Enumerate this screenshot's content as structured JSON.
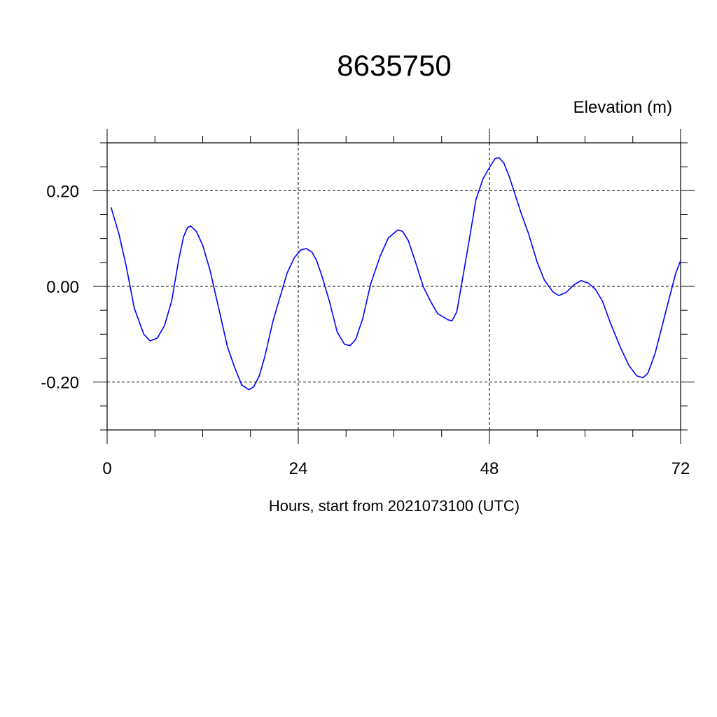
{
  "chart_data": {
    "type": "line",
    "title": "8635750",
    "ylabel": "Elevation (m)",
    "xlabel": "Hours, start from 2021073100 (UTC)",
    "xlim": [
      0,
      72
    ],
    "ylim": [
      -0.3,
      0.3
    ],
    "x_ticks": [
      0,
      24,
      48,
      72
    ],
    "x_tick_labels": [
      "0",
      "24",
      "48",
      "72"
    ],
    "x_minor_step": 6,
    "y_ticks": [
      -0.2,
      0.0,
      0.2
    ],
    "y_tick_labels": [
      "-0.20",
      "0.00",
      "0.20"
    ],
    "y_minor_step": 0.05,
    "grid": "dashed at major ticks",
    "line_color": "#0000ff",
    "series": [
      {
        "x": [
          0.5,
          1.5,
          2.4,
          3.4,
          4.6,
          5.4,
          6.3,
          7.2,
          8.1,
          9.0,
          9.6,
          10.1,
          10.5,
          11.2,
          12.0,
          12.9,
          14.0,
          15.1,
          16.0,
          16.9,
          17.8,
          18.4,
          19.1,
          19.8,
          20.8,
          21.7,
          22.6,
          23.5,
          24.3,
          25.0,
          25.7,
          26.3,
          27.0,
          27.9,
          28.9,
          29.8,
          30.5,
          31.2,
          32.1,
          33.1,
          34.3,
          35.3,
          36.5,
          37.1,
          37.8,
          38.6,
          39.7,
          40.6,
          41.5,
          42.1,
          42.8,
          43.3,
          43.9,
          44.6,
          45.5,
          46.3,
          47.2,
          48.1,
          48.7,
          49.2,
          49.8,
          50.5,
          51.3,
          52.0,
          52.9,
          54.0,
          54.9,
          56.0,
          56.7,
          57.6,
          58.6,
          59.5,
          60.4,
          61.3,
          62.2,
          63.2,
          64.4,
          65.5,
          66.5,
          67.3,
          67.9,
          68.8,
          69.7,
          70.6,
          71.4,
          72.0
        ],
        "y": [
          0.165,
          0.108,
          0.042,
          -0.045,
          -0.1,
          -0.114,
          -0.108,
          -0.082,
          -0.031,
          0.057,
          0.104,
          0.123,
          0.126,
          0.115,
          0.086,
          0.035,
          -0.045,
          -0.126,
          -0.169,
          -0.206,
          -0.216,
          -0.21,
          -0.187,
          -0.147,
          -0.074,
          -0.023,
          0.028,
          0.06,
          0.076,
          0.079,
          0.072,
          0.054,
          0.02,
          -0.031,
          -0.096,
          -0.121,
          -0.124,
          -0.111,
          -0.067,
          0.006,
          0.064,
          0.101,
          0.118,
          0.115,
          0.096,
          0.057,
          -0.001,
          -0.031,
          -0.057,
          -0.063,
          -0.07,
          -0.072,
          -0.053,
          0.013,
          0.101,
          0.181,
          0.225,
          0.251,
          0.267,
          0.269,
          0.258,
          0.229,
          0.188,
          0.152,
          0.111,
          0.05,
          0.013,
          -0.012,
          -0.019,
          -0.013,
          0.003,
          0.012,
          0.007,
          -0.006,
          -0.031,
          -0.077,
          -0.126,
          -0.165,
          -0.187,
          -0.191,
          -0.181,
          -0.14,
          -0.082,
          -0.023,
          0.028,
          0.054
        ]
      }
    ]
  }
}
